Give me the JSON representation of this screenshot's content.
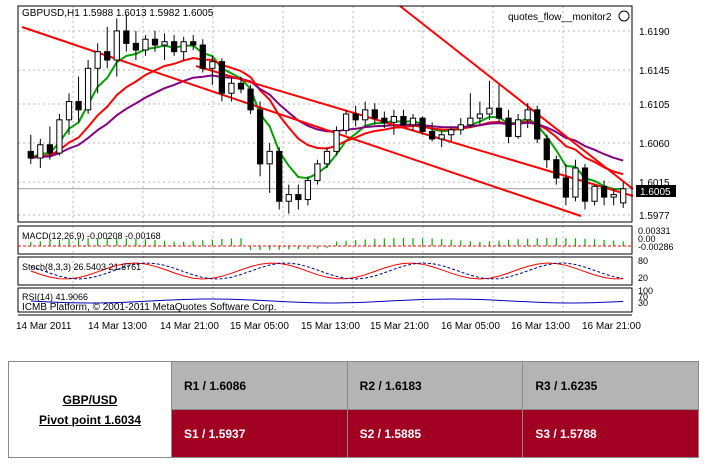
{
  "chart": {
    "title": "GBPUSD,H1  1.5988 1.6013 1.5982 1.6005",
    "indicator_label": "quotes_flow__monitor2",
    "current_price": "1.6005",
    "price_ticks": [
      "1.6190",
      "1.6145",
      "1.6105",
      "1.6060",
      "1.6015",
      "1.5977"
    ],
    "time_ticks": [
      "14 Mar 2011",
      "14 Mar 13:00",
      "14 Mar 21:00",
      "15 Mar 05:00",
      "15 Mar 13:00",
      "15 Mar 21:00",
      "16 Mar 05:00",
      "16 Mar 13:00",
      "16 Mar 21:00"
    ],
    "macd_label": "MACD(12,26,9) -0.00208 -0.00168",
    "macd_ticks": [
      "0.00331",
      "0.00",
      "-0.00286"
    ],
    "stoch_label": "Stoch(8,3,3) 26.5403 21.8761",
    "stoch_ticks": [
      "80",
      "20"
    ],
    "rsi_label": "RSI(14) 41.9066",
    "rsi_ticks": [
      "100",
      "70",
      "30"
    ],
    "copyright": "ICMB Platform, © 2001-2011 MetaQuotes Software Corp.",
    "colors": {
      "bull": "#ffffff",
      "bear": "#000000",
      "grid": "#9a9a9a",
      "trend": "#ff0000",
      "ma_fast": "#00a000",
      "ma_mid": "#ff0000",
      "ma_slow": "#800080"
    }
  },
  "chart_data": {
    "type": "candlestick",
    "symbol": "GBPUSD",
    "timeframe": "H1",
    "last_bar": {
      "open": 1.5988,
      "high": 1.6013,
      "low": 1.5982,
      "close": 1.6005
    },
    "ylim": [
      1.5965,
      1.6225
    ],
    "candles": [
      [
        1.605,
        1.607,
        1.6035,
        1.6042
      ],
      [
        1.6042,
        1.6065,
        1.603,
        1.6058
      ],
      [
        1.6058,
        1.608,
        1.604,
        1.6048
      ],
      [
        1.6048,
        1.6095,
        1.6045,
        1.6088
      ],
      [
        1.6088,
        1.612,
        1.607,
        1.611
      ],
      [
        1.611,
        1.614,
        1.6085,
        1.61
      ],
      [
        1.61,
        1.616,
        1.6095,
        1.615
      ],
      [
        1.615,
        1.618,
        1.612,
        1.617
      ],
      [
        1.617,
        1.62,
        1.615,
        1.616
      ],
      [
        1.616,
        1.621,
        1.614,
        1.6195
      ],
      [
        1.6195,
        1.6215,
        1.617,
        1.618
      ],
      [
        1.618,
        1.6195,
        1.616,
        1.6172
      ],
      [
        1.6172,
        1.619,
        1.6165,
        1.6185
      ],
      [
        1.6185,
        1.6195,
        1.617,
        1.6178
      ],
      [
        1.6178,
        1.6192,
        1.616,
        1.6182
      ],
      [
        1.6182,
        1.619,
        1.6165,
        1.617
      ],
      [
        1.617,
        1.6188,
        1.616,
        1.6182
      ],
      [
        1.6182,
        1.619,
        1.6172,
        1.6178
      ],
      [
        1.6178,
        1.6185,
        1.6145,
        1.615
      ],
      [
        1.615,
        1.6165,
        1.613,
        1.6158
      ],
      [
        1.6158,
        1.6162,
        1.611,
        1.612
      ],
      [
        1.612,
        1.614,
        1.611,
        1.6132
      ],
      [
        1.6132,
        1.614,
        1.612,
        1.6125
      ],
      [
        1.6125,
        1.613,
        1.6095,
        1.61
      ],
      [
        1.61,
        1.611,
        1.602,
        1.6035
      ],
      [
        1.6035,
        1.606,
        1.6,
        1.605
      ],
      [
        1.605,
        1.6055,
        1.598,
        1.599
      ],
      [
        1.599,
        1.601,
        1.5975,
        1.5998
      ],
      [
        1.5998,
        1.601,
        1.598,
        1.5992
      ],
      [
        1.5992,
        1.602,
        1.5985,
        1.6015
      ],
      [
        1.6015,
        1.604,
        1.601,
        1.6035
      ],
      [
        1.6035,
        1.6055,
        1.603,
        1.605
      ],
      [
        1.605,
        1.608,
        1.6045,
        1.6075
      ],
      [
        1.6075,
        1.61,
        1.607,
        1.6095
      ],
      [
        1.6095,
        1.6105,
        1.608,
        1.6088
      ],
      [
        1.6088,
        1.611,
        1.608,
        1.61
      ],
      [
        1.61,
        1.6108,
        1.6082,
        1.609
      ],
      [
        1.609,
        1.6098,
        1.6078,
        1.6085
      ],
      [
        1.6085,
        1.61,
        1.607,
        1.6092
      ],
      [
        1.6092,
        1.61,
        1.608,
        1.6082
      ],
      [
        1.6082,
        1.6095,
        1.6075,
        1.609
      ],
      [
        1.609,
        1.6092,
        1.607,
        1.6074
      ],
      [
        1.6074,
        1.6085,
        1.6062,
        1.6065
      ],
      [
        1.6065,
        1.6075,
        1.6055,
        1.607
      ],
      [
        1.607,
        1.608,
        1.6062,
        1.6076
      ],
      [
        1.6076,
        1.609,
        1.607,
        1.6082
      ],
      [
        1.6082,
        1.612,
        1.6078,
        1.609
      ],
      [
        1.609,
        1.611,
        1.6082,
        1.6095
      ],
      [
        1.6095,
        1.6135,
        1.6088,
        1.6102
      ],
      [
        1.6102,
        1.613,
        1.6085,
        1.609
      ],
      [
        1.609,
        1.61,
        1.606,
        1.6068
      ],
      [
        1.6068,
        1.6095,
        1.6065,
        1.6088
      ],
      [
        1.6088,
        1.6108,
        1.6078,
        1.61
      ],
      [
        1.61,
        1.6105,
        1.606,
        1.6065
      ],
      [
        1.6065,
        1.607,
        1.603,
        1.604
      ],
      [
        1.604,
        1.6045,
        1.601,
        1.6018
      ],
      [
        1.6018,
        1.6035,
        1.5985,
        1.5995
      ],
      [
        1.5995,
        1.604,
        1.599,
        1.603
      ],
      [
        1.603,
        1.6035,
        1.598,
        1.599
      ],
      [
        1.599,
        1.601,
        1.5985,
        1.6008
      ],
      [
        1.6008,
        1.6015,
        1.5985,
        1.5995
      ],
      [
        1.5995,
        1.6005,
        1.5985,
        1.5998
      ],
      [
        1.5988,
        1.6013,
        1.5982,
        1.6005
      ]
    ]
  },
  "pivot": {
    "pair": "GBP/USD",
    "pivot_point": "Pivot point 1.6034",
    "resistance": [
      "R1 / 1.6086",
      "R2 / 1.6183",
      "R3 / 1.6235"
    ],
    "support": [
      "S1 / 1.5937",
      "S2 / 1.5885",
      "S3 / 1.5788"
    ]
  }
}
